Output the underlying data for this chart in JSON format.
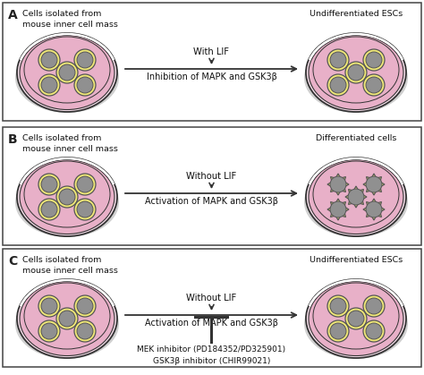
{
  "panel_labels": [
    "A",
    "B",
    "C"
  ],
  "left_text": "Cells isolated from\nmouse inner cell mass",
  "right_text_A": "Undifferentiated ESCs",
  "right_text_B": "Differentiated cells",
  "right_text_C": "Undifferentiated ESCs",
  "top_text_A": "With LIF",
  "top_text_B": "Without LIF",
  "top_text_C": "Without LIF",
  "bottom_text_A": "Inhibition of MAPK and GSK3β",
  "bottom_text_B": "Activation of MAPK and GSK3β",
  "bottom_text_C": "Activation of MAPK and GSK3β",
  "inhibitor_text": "MEK inhibitor (PD184352/PD325901)\nGSK3β inhibitor (CHIR99021)",
  "dish_fill": "#f2c8d8",
  "dish_edge": "#333333",
  "dish_inner_fill": "#e8b0c8",
  "dish_rim_fill": "#f8e0ec",
  "cell_outer_fill": "#f0e878",
  "cell_inner_fill": "#909090",
  "bg_color": "#ffffff",
  "border_color": "#444444",
  "arrow_color": "#333333",
  "font_size_label": 8,
  "font_size_panel_letter": 10
}
